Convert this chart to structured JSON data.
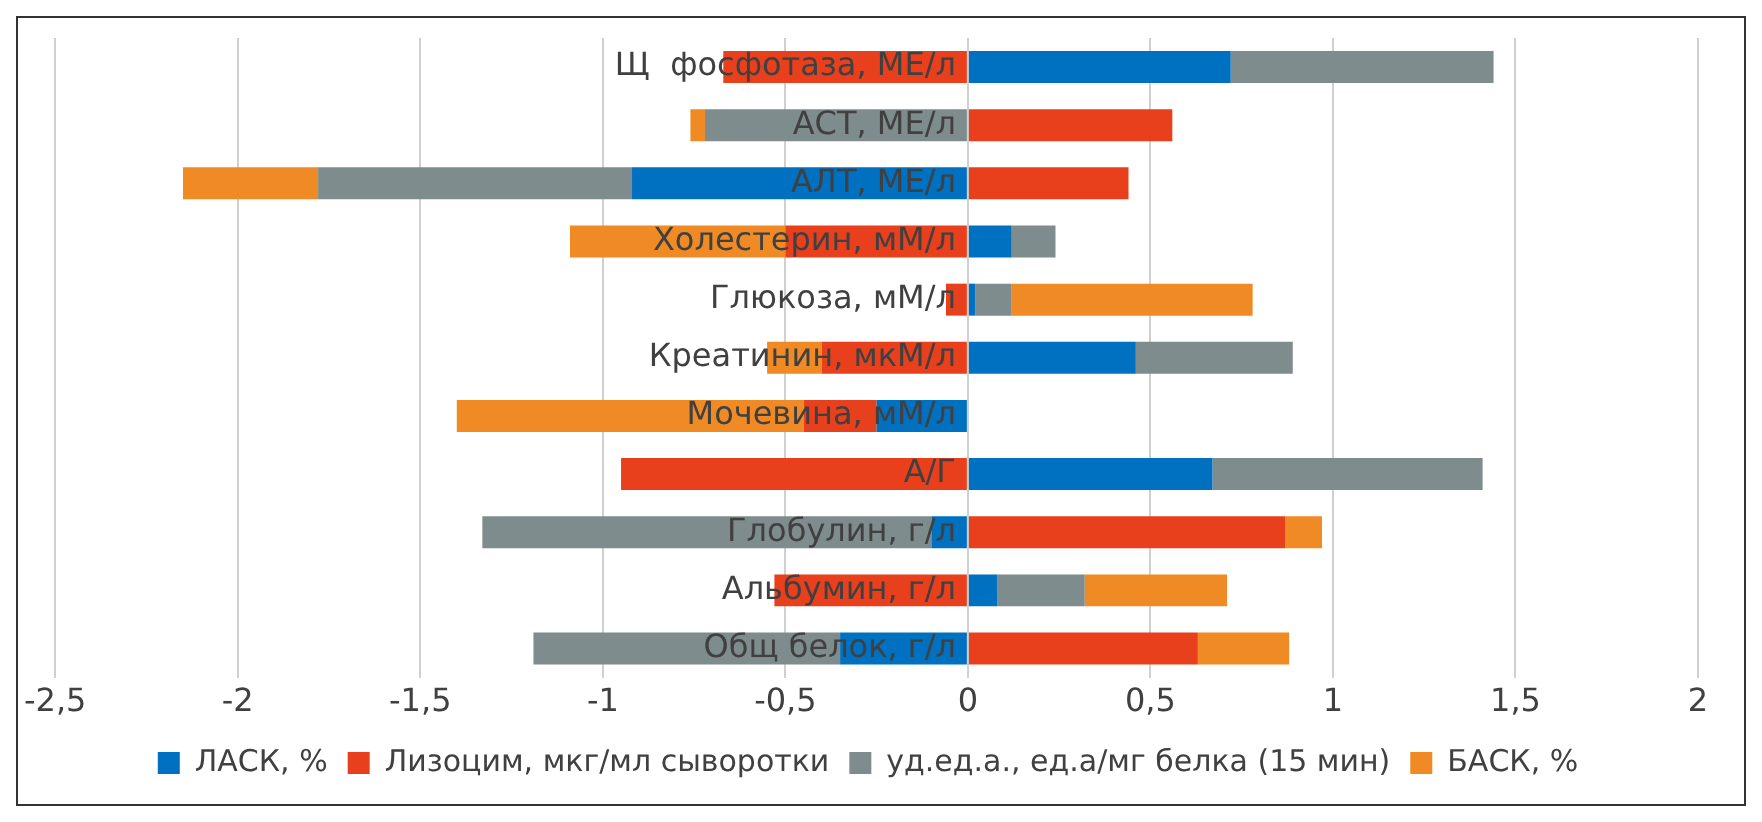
{
  "chart_data": {
    "type": "bar",
    "orientation": "horizontal",
    "stacked": true,
    "categories": [
      "Щ  фосфотаза, МЕ/л",
      "АСТ, МЕ/л",
      "АЛТ, МЕ/л",
      "Холестерин, мМ/л",
      "Глюкоза, мМ/л",
      "Креатинин, мкМ/л",
      "Мочевина, мМ/л",
      "А/Г",
      "Глобулин, г/л",
      "Альбумин, г/л",
      "Общ белок, г/л"
    ],
    "series": [
      {
        "name": "ЛАСК, %",
        "color": "#0070c0",
        "values": [
          0.72,
          null,
          -0.92,
          0.12,
          0.02,
          0.46,
          -0.25,
          0.67,
          -0.1,
          0.08,
          -0.35
        ]
      },
      {
        "name": "Лизоцим, мкг/мл сыворотки",
        "color": "#e8401c",
        "values": [
          -0.67,
          0.56,
          0.44,
          -0.5,
          -0.06,
          -0.4,
          -0.2,
          -0.95,
          0.87,
          -0.53,
          0.63
        ]
      },
      {
        "name": "уд.ед.а., ед.а/мг белка (15 мин)",
        "color": "#7f8c8d",
        "values": [
          0.72,
          -0.72,
          -0.86,
          0.12,
          0.1,
          0.43,
          null,
          0.74,
          -1.23,
          0.24,
          -0.84
        ]
      },
      {
        "name": "БАСК, %",
        "color": "#f08a24",
        "values": [
          null,
          -0.04,
          -0.37,
          -0.59,
          0.66,
          -0.15,
          -0.95,
          null,
          0.1,
          0.39,
          0.25
        ]
      }
    ],
    "xlim": [
      -2.5,
      2
    ],
    "xticks": [
      {
        "value": -2.5,
        "label": "-2,5"
      },
      -2,
      {
        "value": -1.5,
        "label": "-1,5"
      },
      -1,
      {
        "value": -0.5,
        "label": "-0,5"
      },
      0,
      {
        "value": 0.5,
        "label": "0,5"
      },
      1,
      {
        "value": 1.5,
        "label": "1,5"
      },
      2
    ],
    "grid": "x",
    "legend": "bottom"
  }
}
